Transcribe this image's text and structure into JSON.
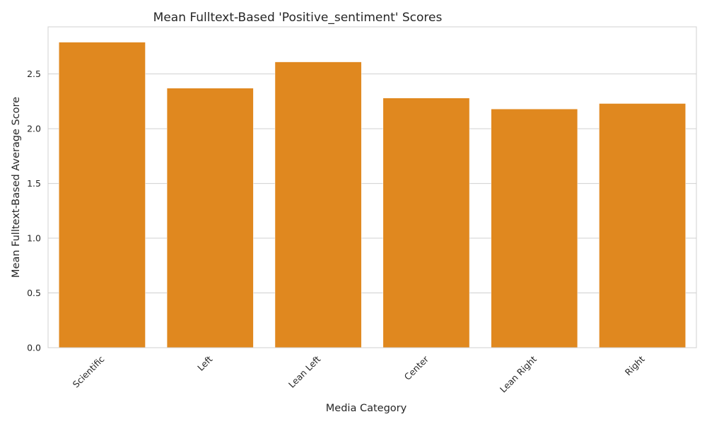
{
  "chart_data": {
    "type": "bar",
    "title": "Mean Fulltext-Based 'Positive_sentiment' Scores",
    "xlabel": "Media Category",
    "ylabel": "Mean Fulltext-Based Average Score",
    "categories": [
      "Scientific",
      "Left",
      "Lean Left",
      "Center",
      "Lean Right",
      "Right"
    ],
    "values": [
      2.79,
      2.37,
      2.61,
      2.28,
      2.18,
      2.23
    ],
    "ylim": [
      0,
      2.93
    ],
    "yticks": [
      "0.0",
      "0.5",
      "1.0",
      "1.5",
      "2.0",
      "2.5"
    ],
    "bar_color": "#e0881f",
    "grid": "horizontal"
  }
}
